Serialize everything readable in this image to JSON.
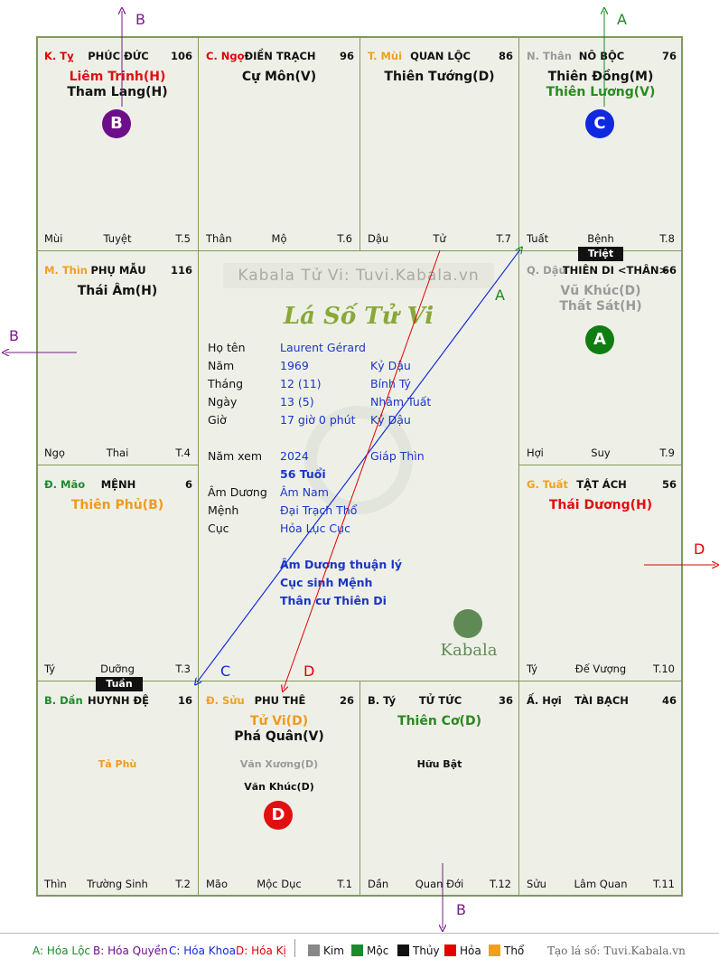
{
  "watermark": "Kabala Tử Vi: Tuvi.Kabala.vn",
  "title": "Lá Số Tử Vi",
  "brand": "Kabala",
  "arrow_labels": {
    "a_top": "A",
    "b_top": "B",
    "b_left": "B",
    "a_mid": "A",
    "c_mid": "C",
    "d_mid": "D",
    "d_right": "D",
    "b_bottom": "B"
  },
  "cells": {
    "ty": {
      "can": "K. Tỵ",
      "name": "PHÚC ĐỨC",
      "num": "106",
      "stars": [
        "Liêm Trinh(H)",
        "Tham Lang(H)"
      ],
      "chi": "Mùi",
      "stage": "Tuyệt",
      "age": "T.5",
      "badge": "B"
    },
    "ngo": {
      "can": "C. Ngọ",
      "name": "ĐIỀN TRẠCH",
      "num": "96",
      "stars": [
        "Cự Môn(V)"
      ],
      "chi": "Thân",
      "stage": "Mộ",
      "age": "T.6"
    },
    "mui": {
      "can": "T. Mùi",
      "name": "QUAN LỘC",
      "num": "86",
      "stars": [
        "Thiên Tướng(D)"
      ],
      "chi": "Dậu",
      "stage": "Tử",
      "age": "T.7"
    },
    "than": {
      "can": "N. Thân",
      "name": "NÔ BỘC",
      "num": "76",
      "stars": [
        "Thiên Đồng(M)",
        "Thiên Lương(V)"
      ],
      "chi": "Tuất",
      "stage": "Bệnh",
      "age": "T.8",
      "badge": "C"
    },
    "thin": {
      "can": "M. Thìn",
      "name": "PHỤ MẪU",
      "num": "116",
      "stars": [
        "Thái Âm(H)"
      ],
      "chi": "Ngọ",
      "stage": "Thai",
      "age": "T.4"
    },
    "dau": {
      "can": "Q. Dậu",
      "name": "THIÊN DI <THÂN>",
      "num": "66",
      "stars": [
        "Vũ Khúc(D)",
        "Thất Sát(H)"
      ],
      "chi": "Hợi",
      "stage": "Suy",
      "age": "T.9",
      "badge": "A",
      "tag": "Triệt"
    },
    "mao": {
      "can": "Đ. Mão",
      "name": "MỆNH",
      "num": "6",
      "stars": [
        "Thiên Phủ(B)"
      ],
      "chi": "Tý",
      "stage": "Dưỡng",
      "age": "T.3",
      "tag": "Tuần"
    },
    "tuat": {
      "can": "G. Tuất",
      "name": "TẬT ÁCH",
      "num": "56",
      "stars": [
        "Thái Dương(H)"
      ],
      "chi": "Tý",
      "stage": "Đế Vượng",
      "age": "T.10"
    },
    "dan": {
      "can": "B. Dần",
      "name": "HUYNH ĐỆ",
      "num": "16",
      "stars": [],
      "minor": [
        "Tả Phù"
      ],
      "chi": "Thìn",
      "stage": "Trường Sinh",
      "age": "T.2"
    },
    "suu": {
      "can": "Đ. Sửu",
      "name": "PHU THÊ",
      "num": "26",
      "stars": [
        "Tử Vi(D)",
        "Phá Quân(V)"
      ],
      "minor": [
        "Văn Xương(D)",
        "Văn Khúc(D)"
      ],
      "chi": "Mão",
      "stage": "Mộc Dục",
      "age": "T.1",
      "badge": "D"
    },
    "ti": {
      "can": "B. Tý",
      "name": "TỬ TỨC",
      "num": "36",
      "stars": [
        "Thiên Cơ(D)"
      ],
      "minor": [
        "Hữu Bật"
      ],
      "chi": "Dần",
      "stage": "Quan Đới",
      "age": "T.12"
    },
    "hoi": {
      "can": "Ấ. Hợi",
      "name": "TÀI BẠCH",
      "num": "46",
      "stars": [],
      "chi": "Sửu",
      "stage": "Lâm Quan",
      "age": "T.11"
    }
  },
  "center": {
    "rows": [
      {
        "label": "Họ tên",
        "v1": "Laurent Gérard",
        "v2": ""
      },
      {
        "label": "Năm",
        "v1": "1969",
        "v2": "Kỷ Dậu"
      },
      {
        "label": "Tháng",
        "v1": "12  (11)",
        "v2": "Bính Tý"
      },
      {
        "label": "Ngày",
        "v1": "13  (5)",
        "v2": "Nhâm Tuất"
      },
      {
        "label": "Giờ",
        "v1": "17 giờ 0 phút",
        "v2": "Kỷ Dậu"
      },
      {
        "label": "Năm xem",
        "v1": "2024",
        "v2": "Giáp Thìn"
      },
      {
        "label": "",
        "v1": "56 Tuổi",
        "v2": ""
      },
      {
        "label": "Âm Dương",
        "v1": "Âm Nam",
        "v2": ""
      },
      {
        "label": "Mệnh",
        "v1": "Đại Trạch Thổ",
        "v2": ""
      },
      {
        "label": "Cục",
        "v1": "Hỏa Lục Cục",
        "v2": ""
      }
    ],
    "notes": [
      "Âm Dương thuận lý",
      "Cục sinh Mệnh",
      "Thân cư Thiên Di"
    ]
  },
  "legend": {
    "a": "A: Hóa Lộc",
    "b": "B: Hóa Quyền",
    "c": "C: Hóa Khoa",
    "d": "D: Hóa Kị",
    "kim": "Kim",
    "moc": "Mộc",
    "thuy": "Thủy",
    "hoa": "Hỏa",
    "tho": "Thổ",
    "site": "Tạo lá số: Tuvi.Kabala.vn"
  },
  "colors": {
    "kim": "#888888",
    "moc": "#1e8a2e",
    "thuy": "#111111",
    "hoa": "#e00000",
    "tho": "#f0a020",
    "star_kim": "#9a9a9a",
    "star_moc": "#2a8a1e",
    "star_thuy": "#111111",
    "star_hoa": "#e01010",
    "star_tho": "#f09a20",
    "badge_a": "#0f7d12",
    "badge_b": "#6e0f8a",
    "badge_c": "#1028e0",
    "badge_d": "#e01010"
  }
}
